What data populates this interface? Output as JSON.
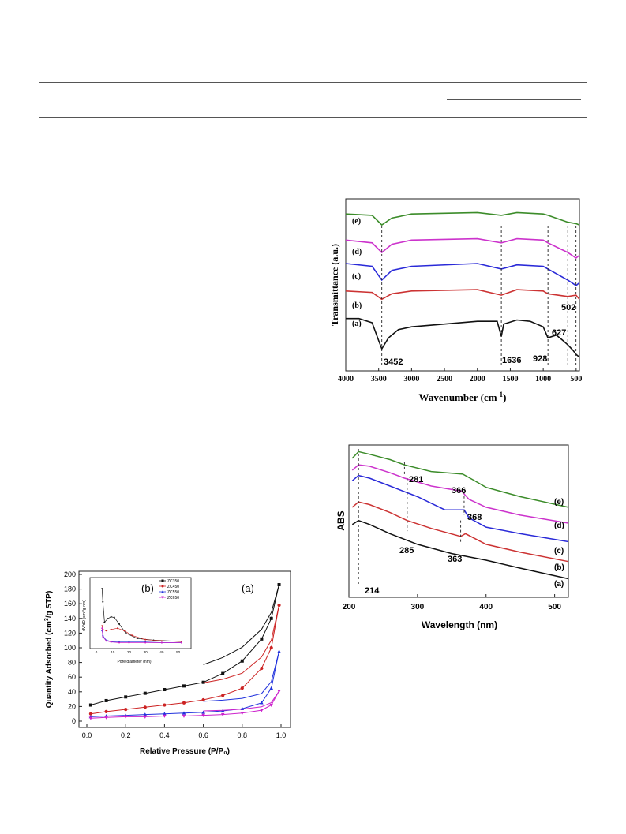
{
  "ftir": {
    "ylabel": "Transmittance (a.u.)",
    "xlabel_main": "Wavenumber (cm",
    "xlabel_sup": "-1",
    "xlabel_close": ")",
    "xticks": [
      "4000",
      "3500",
      "3000",
      "2500",
      "2000",
      "1500",
      "1000",
      "500"
    ],
    "curve_labels": [
      "(e)",
      "(d)",
      "(c)",
      "(b)",
      "(a)"
    ],
    "peaks": [
      "3452",
      "1636",
      "928",
      "627",
      "502"
    ],
    "colors": {
      "e": "#3c8c2a",
      "d": "#cc33cc",
      "c": "#2a2ad8",
      "b": "#cc3333",
      "a": "#111111"
    }
  },
  "uv": {
    "ylabel": "ABS",
    "xlabel": "Wavelength (nm)",
    "xticks": [
      "200",
      "300",
      "400",
      "500"
    ],
    "curve_labels": [
      "(e)",
      "(d)",
      "(c)",
      "(b)",
      "(a)"
    ],
    "peaks": [
      "281",
      "366",
      "368",
      "285",
      "363",
      "214"
    ]
  },
  "bet": {
    "ylabel": "Quantity Adsorbed (cm",
    "ylabel_sup": "3",
    "ylabel_tail": "/g STP)",
    "xlabel": "Relative Pressure (P/P₀)",
    "xticks": [
      "0.0",
      "0.2",
      "0.4",
      "0.6",
      "0.8",
      "1.0"
    ],
    "yticks": [
      "0",
      "20",
      "40",
      "60",
      "80",
      "100",
      "120",
      "140",
      "160",
      "180",
      "200"
    ],
    "panel_a": "(a)",
    "panel_b": "(b)",
    "inset_xlabel": "Pore diameter (nm)",
    "inset_ylabel": "dV/dD (cm³/g·nm)",
    "inset_xticks": [
      "0",
      "10",
      "20",
      "30",
      "40",
      "50"
    ],
    "legend": [
      "ZC350",
      "ZC450",
      "ZC550",
      "ZC650"
    ],
    "colors": {
      "zc350": "#111111",
      "zc450": "#cc2222",
      "zc550": "#2233dd",
      "zc650": "#cc22cc"
    }
  },
  "chart_data": [
    {
      "type": "line",
      "xlabel": "Wavenumber (cm-1)",
      "ylabel": "Transmittance (a.u.)",
      "xlim": [
        4000,
        450
      ],
      "series": [
        {
          "name": "(a)",
          "x": [
            4000,
            3800,
            3600,
            3500,
            3452,
            3350,
            3200,
            3000,
            2500,
            2000,
            1700,
            1636,
            1600,
            1400,
            1200,
            1000,
            928,
            800,
            700,
            627,
            550,
            502,
            450
          ],
          "values": [
            0.38,
            0.38,
            0.35,
            0.22,
            0.16,
            0.24,
            0.3,
            0.32,
            0.34,
            0.36,
            0.36,
            0.25,
            0.34,
            0.37,
            0.36,
            0.32,
            0.24,
            0.26,
            0.22,
            0.19,
            0.15,
            0.12,
            0.1
          ]
        },
        {
          "name": "(b)",
          "x": [
            4000,
            3600,
            3452,
            3300,
            3000,
            2000,
            1636,
            1400,
            1000,
            928,
            627,
            502,
            450
          ],
          "values": [
            0.58,
            0.57,
            0.52,
            0.56,
            0.58,
            0.59,
            0.55,
            0.59,
            0.58,
            0.56,
            0.54,
            0.55,
            0.52
          ]
        },
        {
          "name": "(c)",
          "x": [
            4000,
            3600,
            3452,
            3300,
            3000,
            2000,
            1636,
            1400,
            1000,
            928,
            627,
            502,
            450
          ],
          "values": [
            0.78,
            0.76,
            0.66,
            0.73,
            0.76,
            0.78,
            0.74,
            0.77,
            0.76,
            0.74,
            0.66,
            0.62,
            0.64
          ]
        },
        {
          "name": "(d)",
          "x": [
            4000,
            3600,
            3452,
            3300,
            3000,
            2000,
            1636,
            1400,
            1000,
            928,
            627,
            502,
            450
          ],
          "values": [
            0.95,
            0.93,
            0.86,
            0.92,
            0.95,
            0.96,
            0.93,
            0.96,
            0.95,
            0.93,
            0.86,
            0.82,
            0.84
          ]
        },
        {
          "name": "(e)",
          "x": [
            4000,
            3600,
            3452,
            3300,
            3000,
            2000,
            1636,
            1400,
            1000,
            928,
            627,
            502,
            450
          ],
          "values": [
            1.14,
            1.13,
            1.06,
            1.11,
            1.14,
            1.15,
            1.13,
            1.15,
            1.14,
            1.13,
            1.08,
            1.07,
            1.06
          ]
        }
      ]
    },
    {
      "type": "line",
      "xlabel": "Wavelength (nm)",
      "ylabel": "ABS",
      "xlim": [
        200,
        520
      ],
      "series": [
        {
          "name": "(a)",
          "x": [
            205,
            214,
            230,
            260,
            300,
            350,
            400,
            450,
            520
          ],
          "values": [
            0.55,
            0.58,
            0.55,
            0.48,
            0.4,
            0.33,
            0.28,
            0.22,
            0.14
          ]
        },
        {
          "name": "(b)",
          "x": [
            205,
            214,
            230,
            260,
            285,
            320,
            363,
            370,
            400,
            450,
            520
          ],
          "values": [
            0.68,
            0.72,
            0.7,
            0.64,
            0.58,
            0.52,
            0.46,
            0.48,
            0.4,
            0.34,
            0.27
          ]
        },
        {
          "name": "(c)",
          "x": [
            205,
            214,
            230,
            260,
            300,
            340,
            368,
            375,
            400,
            450,
            520
          ],
          "values": [
            0.88,
            0.92,
            0.9,
            0.84,
            0.76,
            0.66,
            0.66,
            0.6,
            0.53,
            0.48,
            0.42
          ]
        },
        {
          "name": "(d)",
          "x": [
            205,
            214,
            230,
            260,
            281,
            320,
            366,
            368,
            375,
            400,
            450,
            520
          ],
          "values": [
            0.96,
            1.0,
            0.99,
            0.94,
            0.9,
            0.84,
            0.8,
            0.78,
            0.74,
            0.68,
            0.62,
            0.56
          ]
        },
        {
          "name": "(e)",
          "x": [
            205,
            214,
            230,
            260,
            281,
            320,
            366,
            380,
            400,
            450,
            520
          ],
          "values": [
            1.05,
            1.1,
            1.08,
            1.04,
            1.0,
            0.95,
            0.93,
            0.89,
            0.83,
            0.76,
            0.68
          ]
        }
      ]
    },
    {
      "type": "line",
      "xlabel": "Relative Pressure (P/P₀)",
      "ylabel": "Quantity Adsorbed (cm3/g STP)",
      "xlim": [
        0.0,
        1.0
      ],
      "ylim": [
        0,
        200
      ],
      "series": [
        {
          "name": "ZC350",
          "x": [
            0.02,
            0.1,
            0.2,
            0.3,
            0.4,
            0.5,
            0.6,
            0.7,
            0.8,
            0.9,
            0.95,
            0.99
          ],
          "values": [
            22,
            28,
            33,
            38,
            43,
            48,
            53,
            65,
            82,
            112,
            140,
            186
          ]
        },
        {
          "name": "ZC450",
          "x": [
            0.02,
            0.1,
            0.2,
            0.3,
            0.4,
            0.5,
            0.6,
            0.7,
            0.8,
            0.9,
            0.95,
            0.99
          ],
          "values": [
            10,
            13,
            16,
            19,
            22,
            25,
            29,
            35,
            45,
            72,
            100,
            158
          ]
        },
        {
          "name": "ZC550",
          "x": [
            0.02,
            0.1,
            0.2,
            0.3,
            0.4,
            0.5,
            0.6,
            0.7,
            0.8,
            0.9,
            0.95,
            0.99
          ],
          "values": [
            6,
            7,
            8,
            9,
            10,
            11,
            12,
            14,
            17,
            25,
            45,
            95
          ]
        },
        {
          "name": "ZC650",
          "x": [
            0.02,
            0.1,
            0.2,
            0.3,
            0.4,
            0.5,
            0.6,
            0.7,
            0.8,
            0.9,
            0.95,
            0.99
          ],
          "values": [
            4,
            5,
            6,
            6,
            7,
            7,
            8,
            9,
            11,
            15,
            22,
            41
          ]
        }
      ]
    }
  ]
}
